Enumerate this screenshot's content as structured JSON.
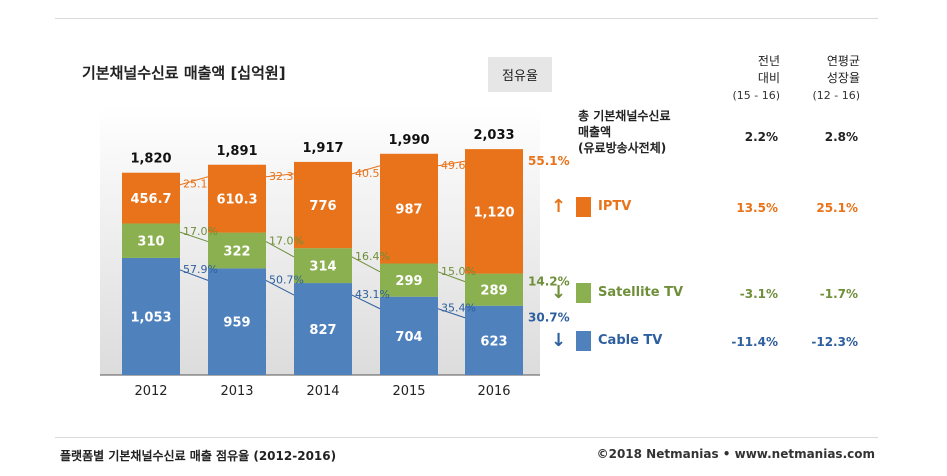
{
  "header": {
    "title": "기본채널수신료 매출액 [십억원]",
    "share_button": "점유율",
    "col1": [
      "전년",
      "대비",
      "(15 - 16)"
    ],
    "col2": [
      "연평균",
      "성장율",
      "(12 - 16)"
    ]
  },
  "summary": {
    "total_label": [
      "총 기본채널수신료",
      "매출액",
      "(유료방송사전체)"
    ],
    "total_yoy": "2.2%",
    "total_cagr": "2.8%",
    "rows": [
      {
        "name": "IPTV",
        "arrow": "↑",
        "color": "#e8731a",
        "yoy": "13.5%",
        "cagr": "25.1%"
      },
      {
        "name": "Satellite TV",
        "arrow": "↓",
        "color": "#8bb04f",
        "yoy": "-3.1%",
        "cagr": "-1.7%"
      },
      {
        "name": "Cable TV",
        "arrow": "↓",
        "color": "#4f81bd",
        "yoy": "-11.4%",
        "cagr": "-12.3%"
      }
    ]
  },
  "chart_data": {
    "type": "bar",
    "stacked": true,
    "categories": [
      "2012",
      "2013",
      "2014",
      "2015",
      "2016"
    ],
    "series": [
      {
        "name": "Cable TV",
        "color": "#4f81bd",
        "values": [
          1053,
          959,
          827,
          704,
          623
        ],
        "labels": [
          "1,053",
          "959",
          "827",
          "704",
          "623"
        ],
        "share": [
          "57.9%",
          "50.7%",
          "43.1%",
          "35.4%",
          "30.7%"
        ]
      },
      {
        "name": "Satellite TV",
        "color": "#8bb04f",
        "values": [
          310,
          322,
          314,
          299,
          289
        ],
        "labels": [
          "310",
          "322",
          "314",
          "299",
          "289"
        ],
        "share": [
          "17.0%",
          "17.0%",
          "16.4%",
          "15.0%",
          "14.2%"
        ]
      },
      {
        "name": "IPTV",
        "color": "#e8731a",
        "values": [
          456.7,
          610.3,
          776,
          987,
          1120
        ],
        "labels": [
          "456.7",
          "610.3",
          "776",
          "987",
          "1,120"
        ],
        "share": [
          "25.1%",
          "32.3%",
          "40.5%",
          "49.6%",
          "55.1%"
        ]
      }
    ],
    "totals": [
      "1,820",
      "1,891",
      "1,917",
      "1,990",
      "2,033"
    ],
    "ylim": [
      0,
      2033
    ],
    "grid": false
  },
  "footer": {
    "caption": "플랫폼별 기본채널수신료 매출 점유율 (2012-2016)",
    "credit": "©2018 Netmanias • www.netmanias.com"
  }
}
